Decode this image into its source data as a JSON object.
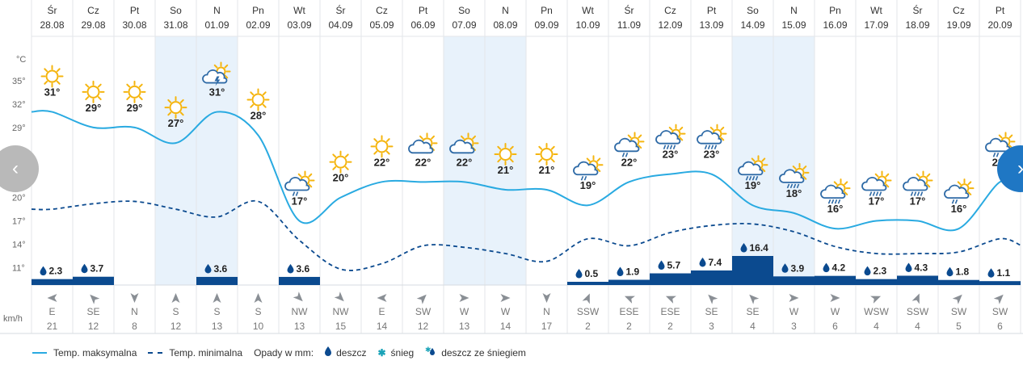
{
  "chart_data": {
    "type": "line",
    "y_axis": {
      "unit": "°C",
      "ticks": [
        "35°",
        "32°",
        "29°",
        "26°",
        "23°",
        "20°",
        "17°",
        "14°",
        "11°"
      ],
      "values": [
        35,
        32,
        29,
        26,
        23,
        20,
        17,
        14,
        11
      ]
    },
    "wind_unit": "km/h",
    "days": [
      {
        "day": "Śr",
        "date": "28.08",
        "weekend": false,
        "icon": "sun",
        "tmax": 31,
        "tmin": 18.5,
        "precip": "2.3",
        "wind_dir": "E",
        "wind": 21
      },
      {
        "day": "Cz",
        "date": "29.08",
        "weekend": false,
        "icon": "sun",
        "tmax": 29,
        "tmin": 19.2,
        "precip": "3.7",
        "wind_dir": "SE",
        "wind": 12
      },
      {
        "day": "Pt",
        "date": "30.08",
        "weekend": false,
        "icon": "sun",
        "tmax": 29,
        "tmin": 19.5,
        "precip": "",
        "wind_dir": "N",
        "wind": 8
      },
      {
        "day": "So",
        "date": "31.08",
        "weekend": true,
        "icon": "sun",
        "tmax": 27,
        "tmin": 18.5,
        "precip": "",
        "wind_dir": "S",
        "wind": 12
      },
      {
        "day": "N",
        "date": "01.09",
        "weekend": true,
        "icon": "sun-storm",
        "tmax": 31,
        "tmin": 17.5,
        "precip": "3.6",
        "wind_dir": "S",
        "wind": 13
      },
      {
        "day": "Pn",
        "date": "02.09",
        "weekend": false,
        "icon": "sun",
        "tmax": 28,
        "tmin": 19.5,
        "precip": "",
        "wind_dir": "S",
        "wind": 10
      },
      {
        "day": "Wt",
        "date": "03.09",
        "weekend": false,
        "icon": "sun-cloud-rain",
        "tmax": 17,
        "tmin": 14.5,
        "precip": "3.6",
        "wind_dir": "NW",
        "wind": 13
      },
      {
        "day": "Śr",
        "date": "04.09",
        "weekend": false,
        "icon": "sun",
        "tmax": 20,
        "tmin": 10.8,
        "precip": "",
        "wind_dir": "NW",
        "wind": 15
      },
      {
        "day": "Cz",
        "date": "05.09",
        "weekend": false,
        "icon": "sun",
        "tmax": 22,
        "tmin": 11.5,
        "precip": "",
        "wind_dir": "E",
        "wind": 14
      },
      {
        "day": "Pt",
        "date": "06.09",
        "weekend": false,
        "icon": "cloud-sun",
        "tmax": 22,
        "tmin": 13.8,
        "precip": "",
        "wind_dir": "SW",
        "wind": 12
      },
      {
        "day": "So",
        "date": "07.09",
        "weekend": true,
        "icon": "cloud-sun",
        "tmax": 22,
        "tmin": 13.6,
        "precip": "",
        "wind_dir": "W",
        "wind": 13
      },
      {
        "day": "N",
        "date": "08.09",
        "weekend": true,
        "icon": "sun",
        "tmax": 21,
        "tmin": 12.8,
        "precip": "",
        "wind_dir": "W",
        "wind": 14
      },
      {
        "day": "Pn",
        "date": "09.09",
        "weekend": false,
        "icon": "sun",
        "tmax": 21,
        "tmin": 11.8,
        "precip": "",
        "wind_dir": "N",
        "wind": 17
      },
      {
        "day": "Wt",
        "date": "10.09",
        "weekend": false,
        "icon": "sun-cloud-rain",
        "tmax": 19,
        "tmin": 14.7,
        "precip": "0.5",
        "wind_dir": "SSW",
        "wind": 2
      },
      {
        "day": "Śr",
        "date": "11.09",
        "weekend": false,
        "icon": "sun-cloud-rain",
        "tmax": 22,
        "tmin": 13.8,
        "precip": "1.9",
        "wind_dir": "ESE",
        "wind": 2
      },
      {
        "day": "Cz",
        "date": "12.09",
        "weekend": false,
        "icon": "sun-cloud-heavy-rain",
        "tmax": 23,
        "tmin": 15.5,
        "precip": "5.7",
        "wind_dir": "ESE",
        "wind": 2
      },
      {
        "day": "Pt",
        "date": "13.09",
        "weekend": false,
        "icon": "sun-cloud-heavy-rain",
        "tmax": 23,
        "tmin": 16.4,
        "precip": "7.4",
        "wind_dir": "SE",
        "wind": 3
      },
      {
        "day": "So",
        "date": "14.09",
        "weekend": true,
        "icon": "sun-cloud-heavy-rain",
        "tmax": 19,
        "tmin": 16.6,
        "precip": "16.4",
        "wind_dir": "SE",
        "wind": 4
      },
      {
        "day": "N",
        "date": "15.09",
        "weekend": true,
        "icon": "sun-cloud-heavy-rain",
        "tmax": 18,
        "tmin": 15.6,
        "precip": "3.9",
        "wind_dir": "W",
        "wind": 3
      },
      {
        "day": "Pn",
        "date": "16.09",
        "weekend": false,
        "icon": "sun-cloud-heavy-rain",
        "tmax": 16,
        "tmin": 13.7,
        "precip": "4.2",
        "wind_dir": "W",
        "wind": 6
      },
      {
        "day": "Wt",
        "date": "17.09",
        "weekend": false,
        "icon": "sun-cloud-heavy-rain",
        "tmax": 17,
        "tmin": 12.8,
        "precip": "2.3",
        "wind_dir": "WSW",
        "wind": 4
      },
      {
        "day": "Śr",
        "date": "18.09",
        "weekend": false,
        "icon": "sun-cloud-heavy-rain",
        "tmax": 17,
        "tmin": 12.8,
        "precip": "4.3",
        "wind_dir": "SSW",
        "wind": 4
      },
      {
        "day": "Cz",
        "date": "19.09",
        "weekend": false,
        "icon": "sun-cloud-rain",
        "tmax": 16,
        "tmin": 13.0,
        "precip": "1.8",
        "wind_dir": "SW",
        "wind": 5
      },
      {
        "day": "Pt",
        "date": "20.09",
        "weekend": false,
        "icon": "sun-cloud-rain",
        "tmax": 22,
        "tmin": 14.7,
        "precip": "1.1",
        "wind_dir": "SW",
        "wind": 6
      }
    ],
    "legend": {
      "tmax": "Temp. maksymalna",
      "tmin": "Temp. minimalna",
      "precip_title": "Opady w mm:",
      "rain": "deszcz",
      "snow": "śnieg",
      "sleet": "deszcz ze śniegiem"
    },
    "colors": {
      "tmax_line": "#29aae1",
      "tmin_line": "#0b4a8f",
      "precip_bar": "#0b4a8f",
      "weekend_bg": "#e8f2fb",
      "sun": "#f5b50f",
      "cloud": "#2e6aa6"
    }
  }
}
